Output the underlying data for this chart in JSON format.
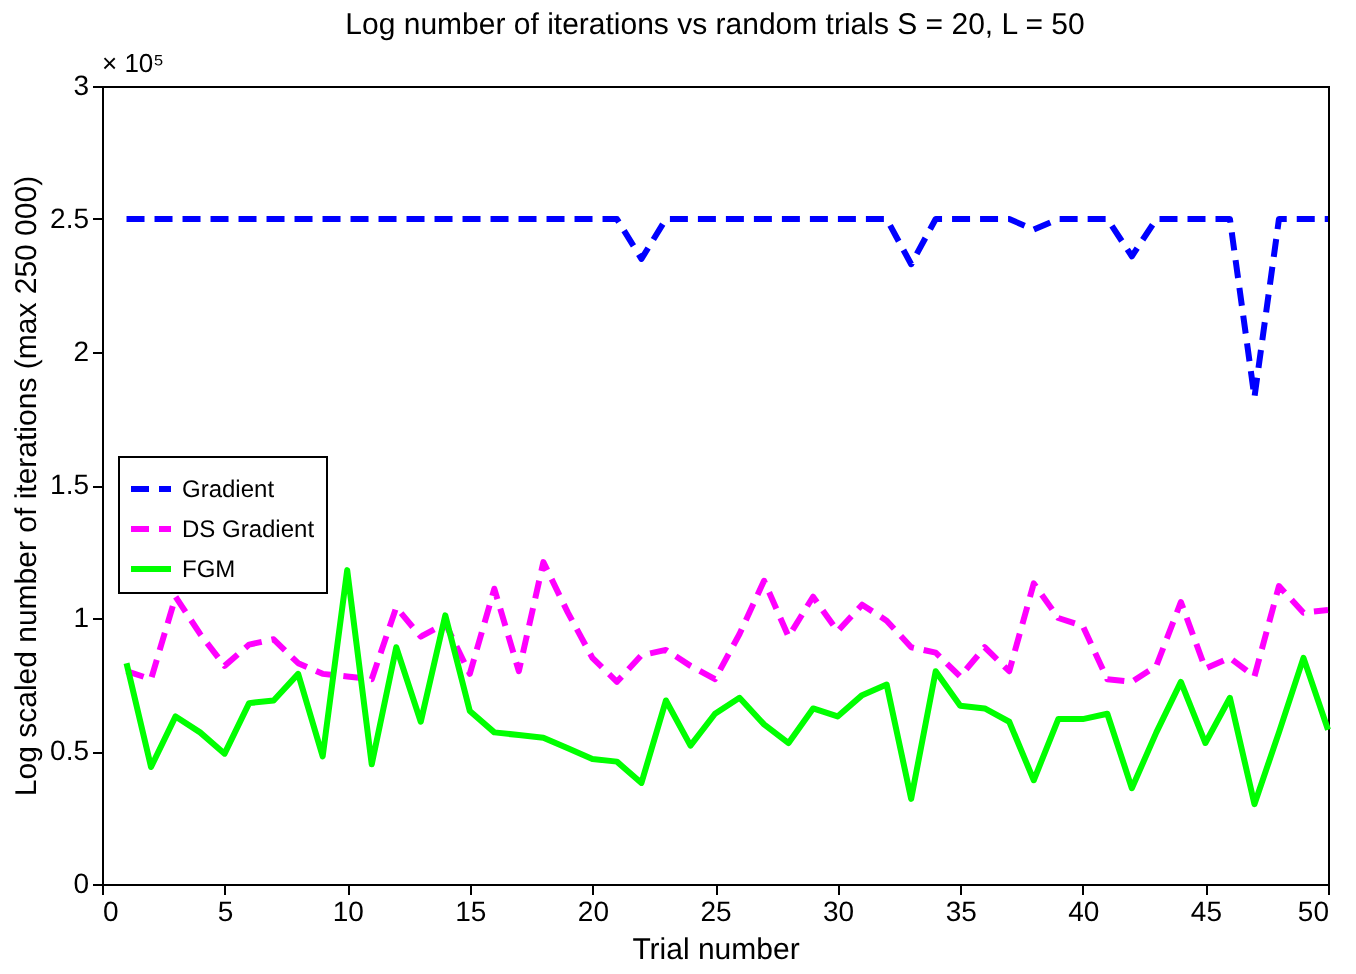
{
  "chart_data": {
    "type": "line",
    "title": "Log number of iterations vs random trials S = 20, L = 50",
    "xlabel": "Trial number",
    "ylabel": "Log scaled number of iterations (max 250 000)",
    "annotations": [
      "× 10⁵"
    ],
    "x": [
      1,
      2,
      3,
      4,
      5,
      6,
      7,
      8,
      9,
      10,
      11,
      12,
      13,
      14,
      15,
      16,
      17,
      18,
      19,
      20,
      21,
      22,
      23,
      24,
      25,
      26,
      27,
      28,
      29,
      30,
      31,
      32,
      33,
      34,
      35,
      36,
      37,
      38,
      39,
      40,
      41,
      42,
      43,
      44,
      45,
      46,
      47,
      48,
      49,
      50
    ],
    "series": [
      {
        "name": "Gradient",
        "color": "#0000ff",
        "line_style": "dashed",
        "values": [
          2.5,
          2.5,
          2.5,
          2.5,
          2.5,
          2.5,
          2.5,
          2.5,
          2.5,
          2.5,
          2.5,
          2.5,
          2.5,
          2.5,
          2.5,
          2.5,
          2.5,
          2.5,
          2.5,
          2.5,
          2.5,
          2.35,
          2.5,
          2.5,
          2.5,
          2.5,
          2.5,
          2.5,
          2.5,
          2.5,
          2.5,
          2.5,
          2.33,
          2.5,
          2.5,
          2.5,
          2.5,
          2.46,
          2.5,
          2.5,
          2.5,
          2.36,
          2.5,
          2.5,
          2.5,
          2.5,
          1.83,
          2.5,
          2.5,
          2.5
        ]
      },
      {
        "name": "DS Gradient",
        "color": "#ff00ff",
        "line_style": "dashed",
        "values": [
          0.8,
          0.77,
          1.08,
          0.94,
          0.82,
          0.9,
          0.92,
          0.83,
          0.79,
          0.78,
          0.77,
          1.04,
          0.93,
          0.98,
          0.79,
          1.11,
          0.8,
          1.21,
          1.02,
          0.85,
          0.76,
          0.86,
          0.88,
          0.82,
          0.77,
          0.94,
          1.14,
          0.93,
          1.08,
          0.95,
          1.05,
          0.99,
          0.89,
          0.87,
          0.78,
          0.89,
          0.8,
          1.13,
          1.0,
          0.97,
          0.77,
          0.76,
          0.82,
          1.06,
          0.81,
          0.85,
          0.78,
          1.12,
          1.02,
          1.03
        ]
      },
      {
        "name": "FGM",
        "color": "#00ff00",
        "line_style": "solid",
        "values": [
          0.83,
          0.44,
          0.63,
          0.57,
          0.49,
          0.68,
          0.69,
          0.79,
          0.48,
          1.18,
          0.45,
          0.89,
          0.61,
          1.01,
          0.65,
          0.57,
          0.56,
          0.55,
          0.51,
          0.47,
          0.46,
          0.38,
          0.69,
          0.52,
          0.64,
          0.7,
          0.6,
          0.53,
          0.66,
          0.63,
          0.71,
          0.75,
          0.32,
          0.8,
          0.67,
          0.66,
          0.61,
          0.39,
          0.62,
          0.62,
          0.64,
          0.36,
          0.57,
          0.76,
          0.53,
          0.7,
          0.3,
          0.57,
          0.85,
          0.58
        ]
      }
    ],
    "xlim": [
      0,
      50
    ],
    "xticks": [
      0,
      5,
      10,
      15,
      20,
      25,
      30,
      35,
      40,
      45,
      50
    ],
    "ylim": [
      0,
      3
    ],
    "yticks": [
      0,
      0.5,
      1,
      1.5,
      2,
      2.5,
      3
    ],
    "grid": false,
    "legend": "left",
    "marker": "none"
  }
}
